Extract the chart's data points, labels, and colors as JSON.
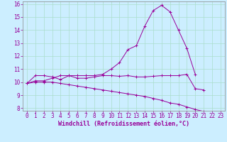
{
  "xlabel": "Windchill (Refroidissement éolien,°C)",
  "x_values": [
    0,
    1,
    2,
    3,
    4,
    5,
    6,
    7,
    8,
    9,
    10,
    11,
    12,
    13,
    14,
    15,
    16,
    17,
    18,
    19,
    20,
    21,
    22,
    23
  ],
  "line1": [
    9.9,
    10.5,
    10.5,
    10.4,
    10.2,
    10.5,
    10.3,
    10.3,
    10.4,
    10.5,
    10.5,
    10.45,
    10.5,
    10.4,
    10.4,
    10.45,
    10.5,
    10.5,
    10.5,
    10.6,
    9.5,
    9.4,
    null,
    null
  ],
  "line2": [
    9.9,
    10.1,
    10.1,
    10.3,
    10.5,
    10.5,
    10.5,
    10.5,
    10.5,
    10.6,
    11.0,
    11.5,
    12.5,
    12.8,
    14.3,
    15.5,
    15.9,
    15.4,
    14.0,
    12.6,
    10.6,
    null,
    null,
    null
  ],
  "line3": [
    9.9,
    10.0,
    10.0,
    10.0,
    9.9,
    9.8,
    9.7,
    9.6,
    9.5,
    9.4,
    9.3,
    9.2,
    9.1,
    9.0,
    8.9,
    8.75,
    8.6,
    8.4,
    8.3,
    8.1,
    7.9,
    7.75,
    null,
    null
  ],
  "line_color": "#990099",
  "bg_color": "#cceeff",
  "grid_color": "#aaddcc",
  "ylim": [
    7.8,
    16.2
  ],
  "xlim": [
    -0.5,
    23.5
  ],
  "yticks": [
    8,
    9,
    10,
    11,
    12,
    13,
    14,
    15,
    16
  ],
  "xticks": [
    0,
    1,
    2,
    3,
    4,
    5,
    6,
    7,
    8,
    9,
    10,
    11,
    12,
    13,
    14,
    15,
    16,
    17,
    18,
    19,
    20,
    21,
    22,
    23
  ],
  "tick_fontsize": 5.5,
  "xlabel_fontsize": 6.0
}
